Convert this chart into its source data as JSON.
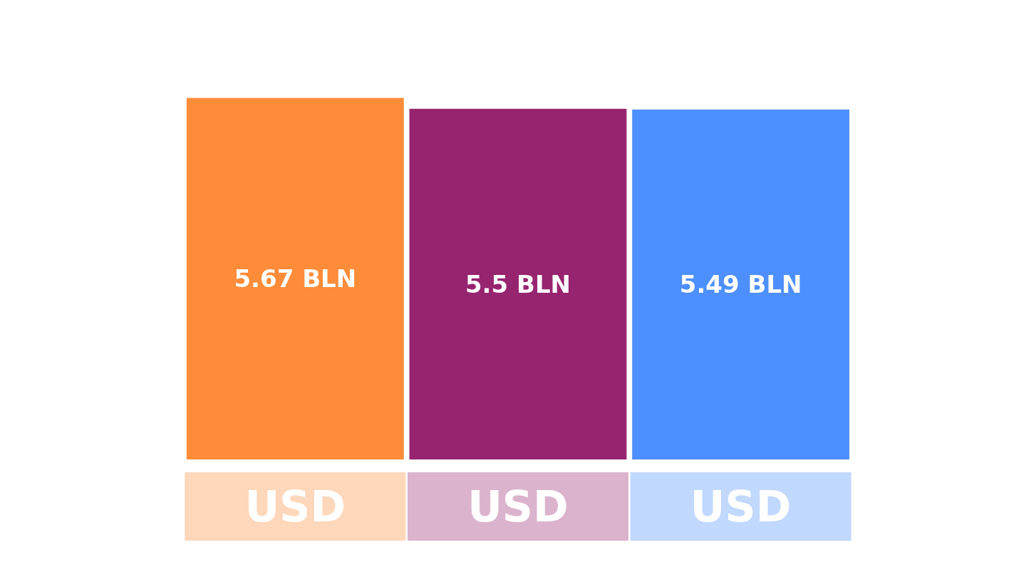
{
  "chart_data": {
    "type": "bar",
    "categories": [
      null,
      null,
      null
    ],
    "values": [
      5.67,
      5.5,
      5.49
    ],
    "colors": [
      "#fe8c39",
      "#97246f",
      "#4d8ffe"
    ],
    "value_labels": [
      "5.67 BLN",
      "5.5 BLN",
      "5.49 BLN"
    ],
    "annotations": [
      "USD",
      "USD",
      "USD"
    ]
  }
}
